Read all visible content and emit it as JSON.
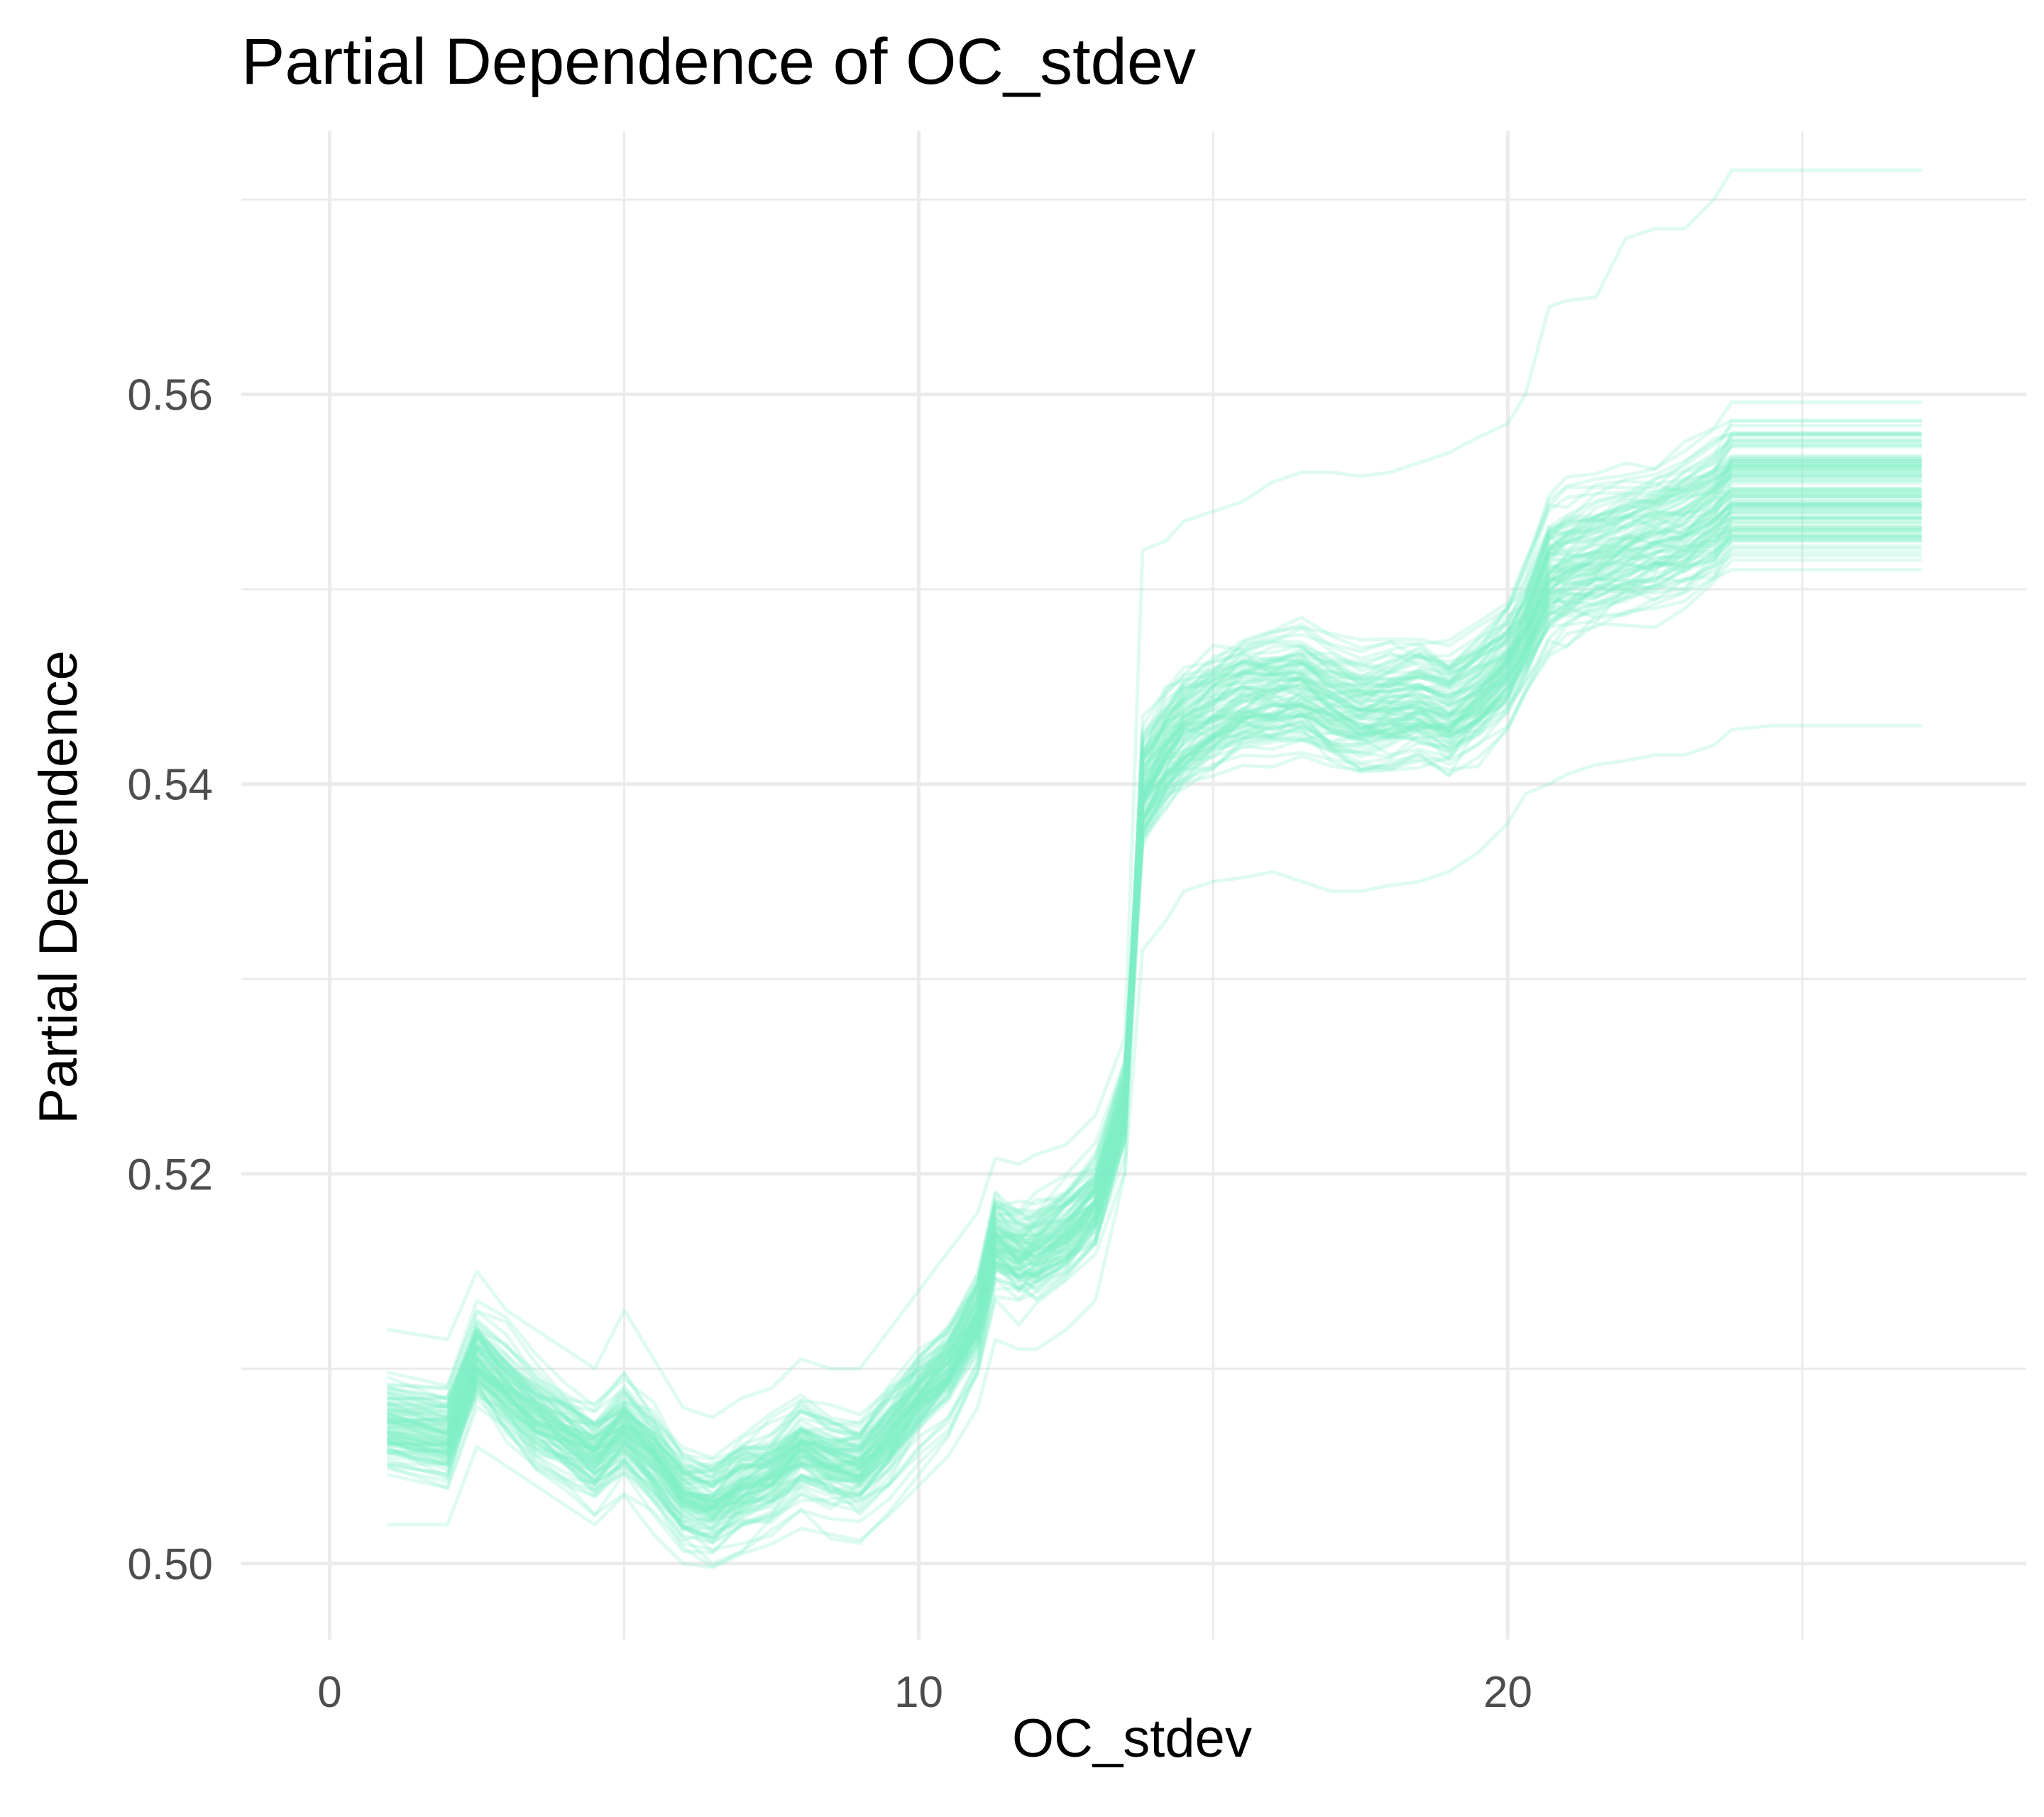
{
  "chart_data": {
    "type": "line",
    "title": "Partial Dependence of OC_stdev",
    "xlabel": "OC_stdev",
    "ylabel": "Partial Dependence",
    "xlim": [
      -1.5,
      28.8
    ],
    "ylim": [
      0.4961,
      0.5735
    ],
    "x_major_ticks": [
      0,
      10,
      20
    ],
    "x_tick_labels": [
      "0",
      "10",
      "20"
    ],
    "x_minor_ticks": [
      5,
      15,
      25
    ],
    "y_major_ticks": [
      0.5,
      0.52,
      0.54,
      0.56
    ],
    "y_tick_labels": [
      "0.50",
      "0.52",
      "0.54",
      "0.56"
    ],
    "y_minor_ticks": [
      0.51,
      0.53,
      0.55,
      0.57
    ],
    "grid": true,
    "legend": "none",
    "line_color": "#7eeec6",
    "line_opacity": 0.25,
    "n_series": 100,
    "x": [
      1.0,
      2.0,
      2.5,
      3.0,
      3.5,
      4.0,
      4.5,
      5.0,
      5.5,
      6.0,
      6.5,
      7.0,
      7.5,
      8.0,
      8.5,
      9.0,
      9.5,
      10.0,
      10.5,
      11.0,
      11.3,
      11.7,
      12.0,
      12.5,
      13.0,
      13.5,
      13.8,
      14.2,
      14.5,
      15.0,
      15.5,
      16.0,
      16.5,
      17.0,
      17.5,
      18.0,
      18.5,
      19.0,
      19.5,
      20.0,
      20.3,
      20.7,
      21.0,
      21.5,
      22.0,
      22.5,
      23.0,
      23.5,
      23.8,
      24.5,
      25.0,
      26.0,
      27.0
    ],
    "mean_curve": [
      0.507,
      0.5065,
      0.5105,
      0.509,
      0.5075,
      0.5065,
      0.5055,
      0.507,
      0.5055,
      0.5035,
      0.503,
      0.504,
      0.5045,
      0.5058,
      0.5052,
      0.505,
      0.5065,
      0.5085,
      0.51,
      0.5125,
      0.5165,
      0.5158,
      0.516,
      0.517,
      0.5185,
      0.5235,
      0.54,
      0.542,
      0.543,
      0.544,
      0.5448,
      0.545,
      0.5452,
      0.5445,
      0.544,
      0.5442,
      0.5445,
      0.544,
      0.545,
      0.5465,
      0.548,
      0.551,
      0.5515,
      0.552,
      0.5525,
      0.553,
      0.5535,
      0.5545,
      0.5555,
      0.5555,
      0.5555,
      0.5555,
      0.5555
    ],
    "outer_curves": [
      {
        "values": [
          0.512,
          0.5115,
          0.515,
          0.513,
          0.512,
          0.511,
          0.51,
          0.513,
          0.5105,
          0.508,
          0.5075,
          0.5085,
          0.509,
          0.5105,
          0.51,
          0.51,
          0.512,
          0.514,
          0.516,
          0.518,
          0.5208,
          0.5205,
          0.521,
          0.5215,
          0.523,
          0.527,
          0.552,
          0.5525,
          0.5535,
          0.554,
          0.5545,
          0.5555,
          0.556,
          0.556,
          0.5558,
          0.556,
          0.5565,
          0.557,
          0.5578,
          0.5585,
          0.56,
          0.5645,
          0.5648,
          0.565,
          0.568,
          0.5685,
          0.5685,
          0.57,
          0.5715,
          0.5715,
          0.5715,
          0.5715,
          0.5715
        ]
      },
      {
        "values": [
          0.502,
          0.502,
          0.506,
          0.505,
          0.504,
          0.503,
          0.502,
          0.5035,
          0.5015,
          0.5,
          0.4998,
          0.5005,
          0.501,
          0.5018,
          0.5015,
          0.5012,
          0.5025,
          0.504,
          0.5055,
          0.508,
          0.5115,
          0.511,
          0.511,
          0.512,
          0.5135,
          0.52,
          0.5315,
          0.533,
          0.5345,
          0.535,
          0.5352,
          0.5355,
          0.535,
          0.5345,
          0.5345,
          0.5348,
          0.535,
          0.5355,
          0.5365,
          0.538,
          0.5395,
          0.54,
          0.5405,
          0.541,
          0.5412,
          0.5415,
          0.5415,
          0.542,
          0.5428,
          0.543,
          0.543,
          0.543,
          0.543
        ]
      }
    ]
  }
}
